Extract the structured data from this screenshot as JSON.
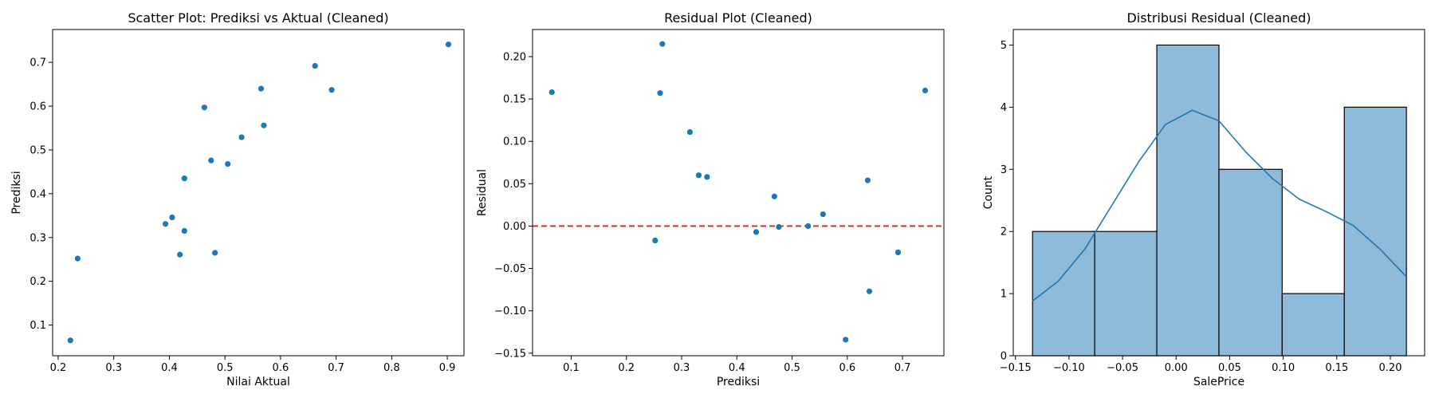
{
  "chart_data": [
    {
      "type": "scatter",
      "title": "Scatter Plot: Prediksi vs Aktual (Cleaned)",
      "xlabel": "Nilai Aktual",
      "ylabel": "Prediksi",
      "xlim": [
        0.19,
        0.93
      ],
      "ylim": [
        0.03,
        0.775
      ],
      "xticks": [
        0.2,
        0.3,
        0.4,
        0.5,
        0.6,
        0.7,
        0.8,
        0.9
      ],
      "xtick_labels": [
        "0.2",
        "0.3",
        "0.4",
        "0.5",
        "0.6",
        "0.7",
        "0.8",
        "0.9"
      ],
      "yticks": [
        0.1,
        0.2,
        0.3,
        0.4,
        0.5,
        0.6,
        0.7
      ],
      "ytick_labels": [
        "0.1",
        "0.2",
        "0.3",
        "0.4",
        "0.5",
        "0.6",
        "0.7"
      ],
      "grid": false,
      "color": "#1f77b4",
      "points": [
        {
          "x": 0.222,
          "y": 0.065
        },
        {
          "x": 0.235,
          "y": 0.252
        },
        {
          "x": 0.393,
          "y": 0.331
        },
        {
          "x": 0.405,
          "y": 0.346
        },
        {
          "x": 0.419,
          "y": 0.261
        },
        {
          "x": 0.427,
          "y": 0.315
        },
        {
          "x": 0.427,
          "y": 0.435
        },
        {
          "x": 0.463,
          "y": 0.597
        },
        {
          "x": 0.475,
          "y": 0.476
        },
        {
          "x": 0.482,
          "y": 0.265
        },
        {
          "x": 0.505,
          "y": 0.468
        },
        {
          "x": 0.53,
          "y": 0.529
        },
        {
          "x": 0.565,
          "y": 0.64
        },
        {
          "x": 0.57,
          "y": 0.556
        },
        {
          "x": 0.662,
          "y": 0.692
        },
        {
          "x": 0.692,
          "y": 0.637
        },
        {
          "x": 0.902,
          "y": 0.741
        }
      ]
    },
    {
      "type": "scatter",
      "title": "Residual Plot (Cleaned)",
      "xlabel": "Prediksi",
      "ylabel": "Residual",
      "xlim": [
        0.03,
        0.775
      ],
      "ylim": [
        -0.153,
        0.232
      ],
      "xticks": [
        0.1,
        0.2,
        0.3,
        0.4,
        0.5,
        0.6,
        0.7
      ],
      "xtick_labels": [
        "0.1",
        "0.2",
        "0.3",
        "0.4",
        "0.5",
        "0.6",
        "0.7"
      ],
      "yticks": [
        -0.15,
        -0.1,
        -0.05,
        0.0,
        0.05,
        0.1,
        0.15,
        0.2
      ],
      "ytick_labels": [
        "−0.15",
        "−0.10",
        "−0.05",
        "0.00",
        "0.05",
        "0.10",
        "0.15",
        "0.20"
      ],
      "grid": false,
      "color": "#1f77b4",
      "reference_line": {
        "y": 0,
        "color": "#d62728",
        "style": "dashed"
      },
      "points": [
        {
          "x": 0.065,
          "y": 0.158
        },
        {
          "x": 0.252,
          "y": -0.017
        },
        {
          "x": 0.261,
          "y": 0.157
        },
        {
          "x": 0.265,
          "y": 0.215
        },
        {
          "x": 0.315,
          "y": 0.111
        },
        {
          "x": 0.331,
          "y": 0.06
        },
        {
          "x": 0.346,
          "y": 0.058
        },
        {
          "x": 0.435,
          "y": -0.007
        },
        {
          "x": 0.468,
          "y": 0.035
        },
        {
          "x": 0.476,
          "y": -0.001
        },
        {
          "x": 0.529,
          "y": 0.0
        },
        {
          "x": 0.556,
          "y": 0.014
        },
        {
          "x": 0.597,
          "y": -0.134
        },
        {
          "x": 0.637,
          "y": 0.054
        },
        {
          "x": 0.64,
          "y": -0.077
        },
        {
          "x": 0.692,
          "y": -0.031
        },
        {
          "x": 0.741,
          "y": 0.16
        }
      ]
    },
    {
      "type": "bar",
      "subtype": "histogram-with-kde",
      "title": "Distribusi Residual (Cleaned)",
      "xlabel": "SalePrice",
      "ylabel": "Count",
      "xlim": [
        -0.152,
        0.232
      ],
      "ylim": [
        0,
        5.25
      ],
      "xticks": [
        -0.15,
        -0.1,
        -0.05,
        0.0,
        0.05,
        0.1,
        0.15,
        0.2
      ],
      "xtick_labels": [
        "−0.15",
        "−0.10",
        "−0.05",
        "0.00",
        "0.05",
        "0.10",
        "0.15",
        "0.20"
      ],
      "yticks": [
        0,
        1,
        2,
        3,
        4,
        5
      ],
      "ytick_labels": [
        "0",
        "1",
        "2",
        "3",
        "4",
        "5"
      ],
      "grid": false,
      "bar_color": "#8fbbdb",
      "line_color": "#1f77b4",
      "bins": [
        {
          "x0": -0.134,
          "x1": -0.076,
          "count": 2
        },
        {
          "x0": -0.076,
          "x1": -0.018,
          "count": 2
        },
        {
          "x0": -0.018,
          "x1": 0.04,
          "count": 5
        },
        {
          "x0": 0.04,
          "x1": 0.099,
          "count": 3
        },
        {
          "x0": 0.099,
          "x1": 0.157,
          "count": 1
        },
        {
          "x0": 0.157,
          "x1": 0.215,
          "count": 4
        }
      ],
      "kde": [
        {
          "x": -0.134,
          "y": 0.88
        },
        {
          "x": -0.11,
          "y": 1.2
        },
        {
          "x": -0.085,
          "y": 1.72
        },
        {
          "x": -0.06,
          "y": 2.42
        },
        {
          "x": -0.035,
          "y": 3.12
        },
        {
          "x": -0.01,
          "y": 3.72
        },
        {
          "x": 0.015,
          "y": 3.95
        },
        {
          "x": 0.04,
          "y": 3.78
        },
        {
          "x": 0.065,
          "y": 3.28
        },
        {
          "x": 0.09,
          "y": 2.85
        },
        {
          "x": 0.115,
          "y": 2.52
        },
        {
          "x": 0.14,
          "y": 2.32
        },
        {
          "x": 0.165,
          "y": 2.1
        },
        {
          "x": 0.19,
          "y": 1.72
        },
        {
          "x": 0.215,
          "y": 1.27
        }
      ]
    }
  ]
}
